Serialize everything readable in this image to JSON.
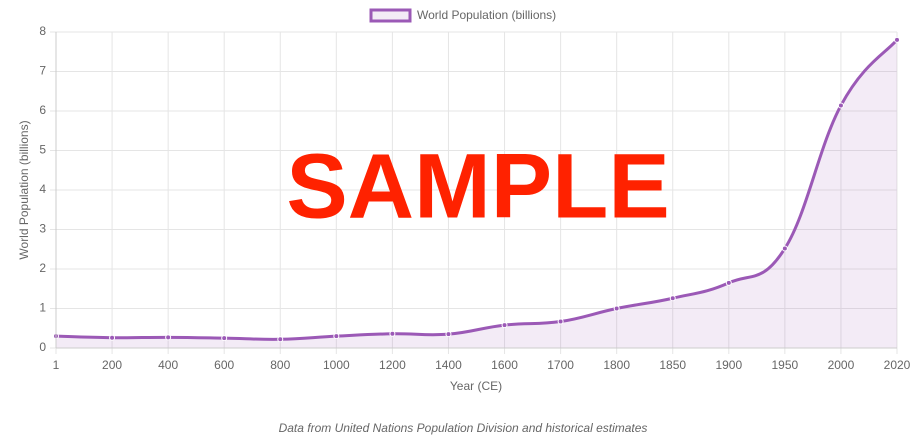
{
  "chart_data": {
    "type": "line",
    "categories": [
      "1",
      "200",
      "400",
      "600",
      "800",
      "1000",
      "1200",
      "1400",
      "1600",
      "1700",
      "1800",
      "1850",
      "1900",
      "1950",
      "2000",
      "2020"
    ],
    "series": [
      {
        "name": "World Population (billions)",
        "color": "#9b59b6",
        "values": [
          0.3,
          0.26,
          0.27,
          0.25,
          0.22,
          0.3,
          0.36,
          0.35,
          0.58,
          0.67,
          1.0,
          1.26,
          1.65,
          2.52,
          6.14,
          7.8
        ]
      }
    ],
    "ylim": [
      0,
      8
    ],
    "yticks": [
      0,
      1,
      2,
      3,
      4,
      5,
      6,
      7,
      8
    ],
    "x_label": "Year (CE)",
    "y_label": "World Population (billions)",
    "grid": true,
    "fill": true,
    "legend": "top",
    "watermark": "SAMPLE",
    "caption": "Data from United Nations Population Division and historical estimates"
  }
}
